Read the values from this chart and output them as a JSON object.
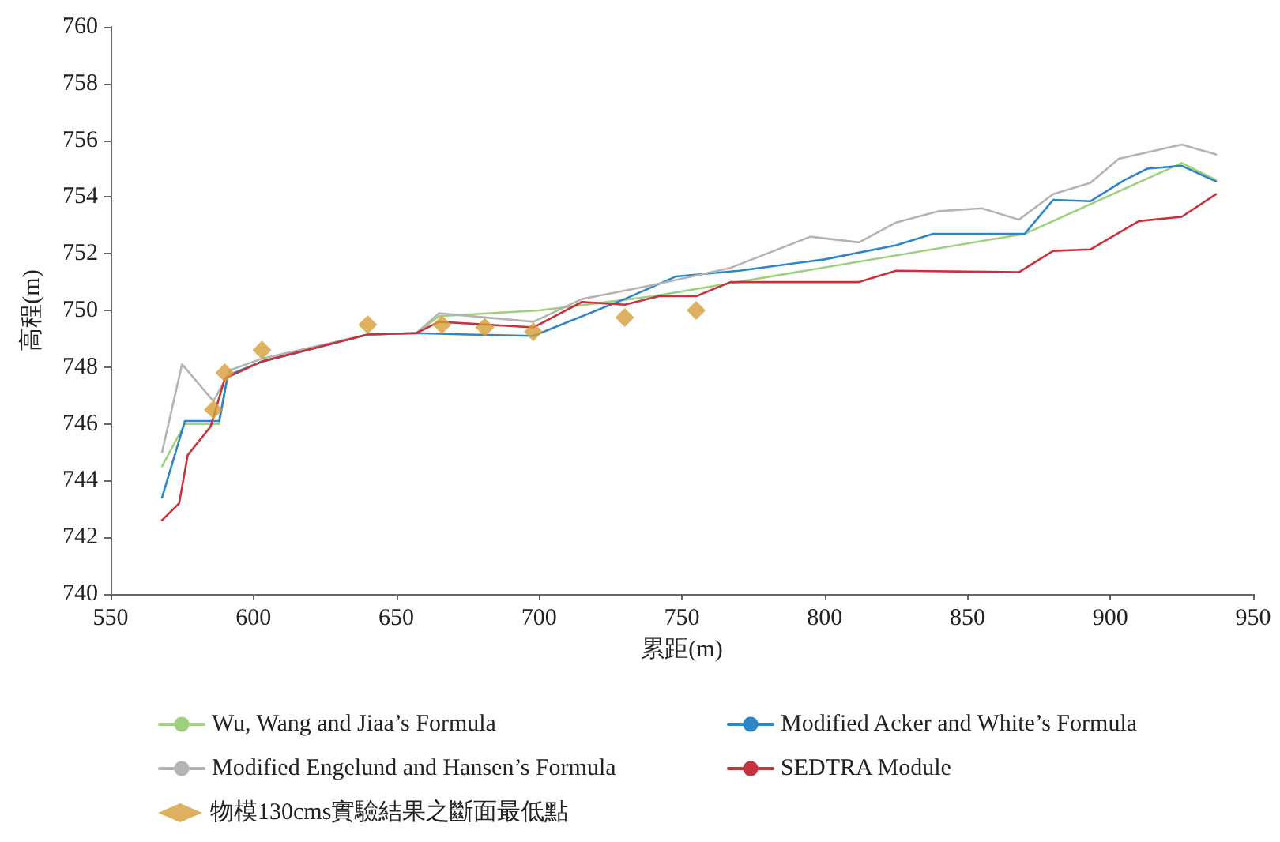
{
  "chart_data": {
    "type": "line",
    "xlabel": "累距(m)",
    "ylabel": "高程(m)",
    "xlim": [
      550,
      950
    ],
    "xticks": [
      550,
      600,
      650,
      700,
      750,
      800,
      850,
      900,
      950
    ],
    "ylim": [
      740,
      760
    ],
    "yticks": [
      740,
      742,
      744,
      746,
      748,
      750,
      752,
      754,
      756,
      758,
      760
    ],
    "grid": false,
    "legend": "bottom",
    "marker": "none",
    "line_style": "solid",
    "series": [
      {
        "name": "Wu, Wang and Jiaa’s Formula",
        "color": "#9fd07e",
        "x": [
          568,
          576,
          588,
          591,
          603,
          640,
          657,
          665,
          700,
          740,
          870,
          925,
          937
        ],
        "values": [
          744.5,
          746.0,
          746.0,
          747.7,
          748.2,
          749.15,
          749.2,
          749.8,
          750.0,
          750.5,
          752.7,
          755.2,
          754.6
        ]
      },
      {
        "name": "Modified Acker and White’s Formula",
        "color": "#2f86c6",
        "x": [
          568,
          576,
          588,
          591,
          603,
          640,
          657,
          675,
          698,
          730,
          748,
          770,
          800,
          825,
          838,
          870,
          880,
          893,
          905,
          913,
          925,
          937
        ],
        "values": [
          743.4,
          746.1,
          746.1,
          747.7,
          748.2,
          749.15,
          749.2,
          749.15,
          749.1,
          750.4,
          751.2,
          751.4,
          751.8,
          752.3,
          752.7,
          752.7,
          753.9,
          753.85,
          754.6,
          755.0,
          755.1,
          754.55
        ]
      },
      {
        "name": "Modified Engelund and Hansen’s Formula",
        "color": "#b4b4b4",
        "x": [
          568,
          575,
          586,
          592,
          603,
          640,
          657,
          665,
          698,
          715,
          740,
          767,
          795,
          812,
          825,
          840,
          855,
          868,
          880,
          893,
          903,
          925,
          937
        ],
        "values": [
          745.0,
          748.1,
          746.8,
          747.9,
          748.3,
          749.15,
          749.2,
          749.9,
          749.6,
          750.4,
          750.9,
          751.5,
          752.6,
          752.4,
          753.1,
          753.5,
          753.6,
          753.2,
          754.1,
          754.5,
          755.35,
          755.85,
          755.5
        ]
      },
      {
        "name": "SEDTRA Module",
        "color": "#c8323c",
        "x": [
          568,
          574,
          577,
          585,
          590,
          603,
          640,
          657,
          665,
          698,
          715,
          730,
          742,
          755,
          767,
          812,
          825,
          868,
          880,
          893,
          910,
          925,
          937
        ],
        "values": [
          742.6,
          743.2,
          744.9,
          745.9,
          747.6,
          748.2,
          749.15,
          749.2,
          749.6,
          749.4,
          750.3,
          750.2,
          750.5,
          750.5,
          751.0,
          751.0,
          751.4,
          751.35,
          752.1,
          752.15,
          753.15,
          753.3,
          754.1
        ]
      },
      {
        "name": "物模130cms實驗結果之斷面最低點",
        "type": "scatter",
        "marker": "diamond",
        "color": "#d69e38",
        "x": [
          586,
          590,
          603,
          640,
          666,
          681,
          698,
          730,
          755
        ],
        "values": [
          746.5,
          747.8,
          748.6,
          749.5,
          749.5,
          749.4,
          749.25,
          749.75,
          750.0
        ]
      }
    ]
  }
}
